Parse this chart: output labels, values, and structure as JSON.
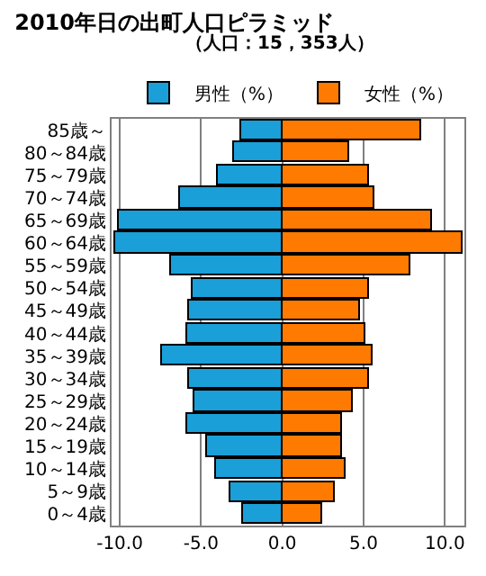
{
  "chart_data": {
    "type": "bar",
    "orientation": "horizontal",
    "stacked": true,
    "title": "2010年日の出町人口ピラミッド",
    "subtitle": "（人口：15，353人）",
    "categories": [
      "85歳～",
      "80～84歳",
      "75～79歳",
      "70～74歳",
      "65～69歳",
      "60～64歳",
      "55～59歳",
      "50～54歳",
      "45～49歳",
      "40～44歳",
      "35～39歳",
      "30～34歳",
      "25～29歳",
      "20～24歳",
      "15～19歳",
      "10～14歳",
      "5～9歳",
      "0～4歳"
    ],
    "series": [
      {
        "name": "男性（%）",
        "color": "#1a9fd8",
        "values": [
          -2.5,
          -3.0,
          -4.0,
          -6.3,
          -10.1,
          -10.3,
          -6.9,
          -5.5,
          -5.7,
          -5.8,
          -7.4,
          -5.7,
          -5.4,
          -5.8,
          -4.6,
          -4.1,
          -3.2,
          -2.4
        ]
      },
      {
        "name": "女性（%）",
        "color": "#ff7a00",
        "values": [
          8.5,
          4.1,
          5.3,
          5.7,
          9.2,
          11.1,
          7.9,
          5.3,
          4.8,
          5.1,
          5.5,
          5.3,
          4.3,
          3.7,
          3.7,
          3.9,
          3.2,
          2.4
        ]
      }
    ],
    "xlim": [
      -10.5,
      11.2
    ],
    "xticks": [
      {
        "value": -10,
        "label": "-10.0"
      },
      {
        "value": -5,
        "label": "-5.0"
      },
      {
        "value": 0,
        "label": "0.0"
      },
      {
        "value": 5,
        "label": "5.0"
      },
      {
        "value": 10,
        "label": "10.0"
      }
    ],
    "grid": "x",
    "legend": "top right"
  }
}
